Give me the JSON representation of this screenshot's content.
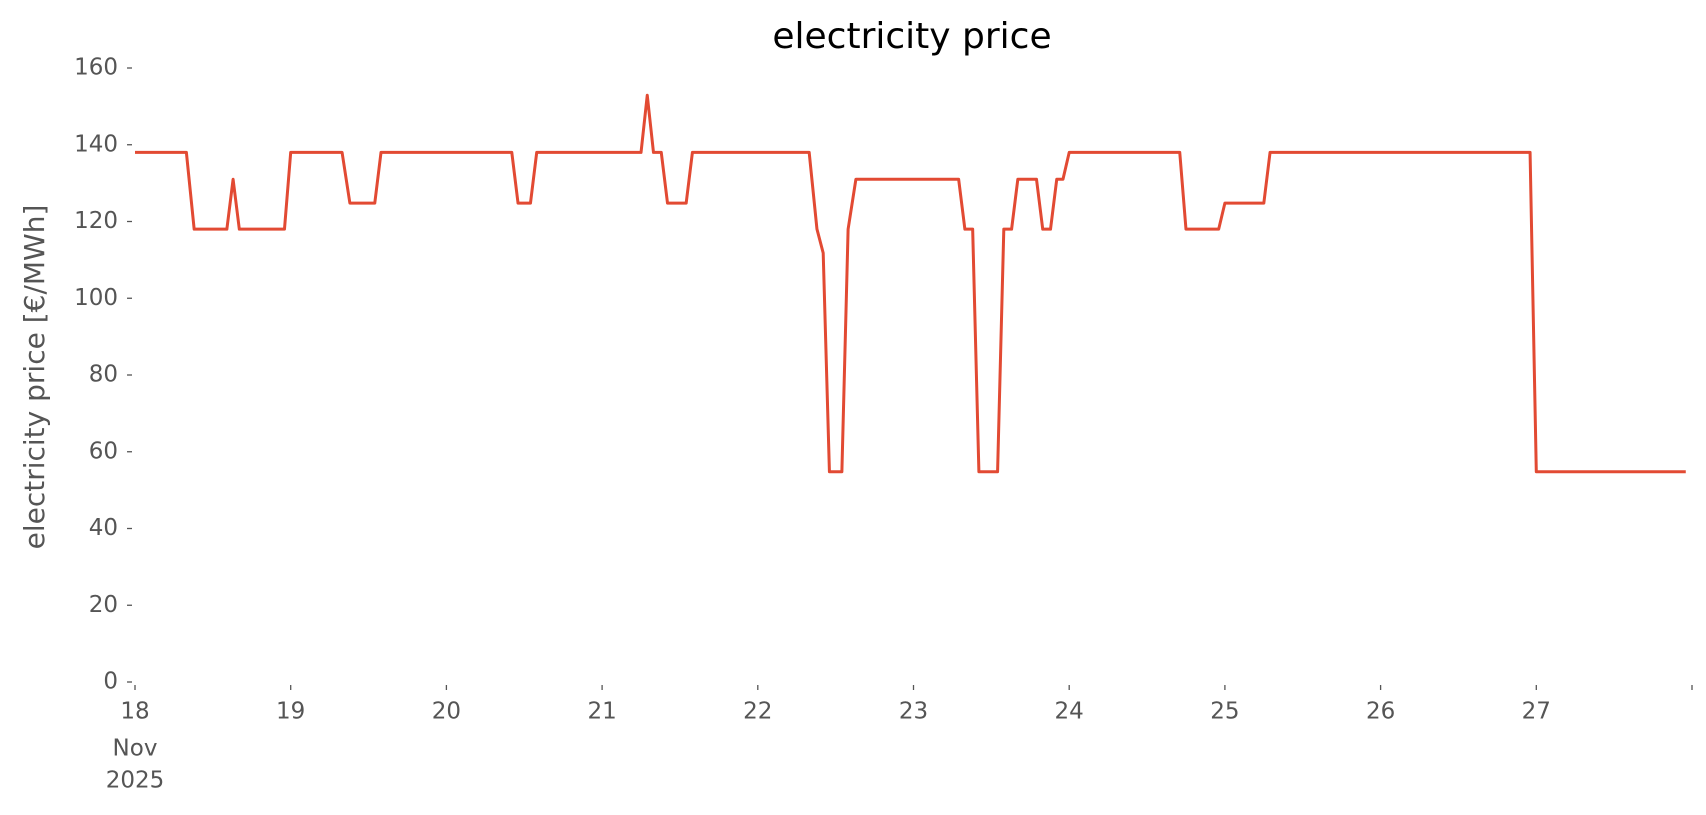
{
  "chart_data": {
    "type": "line",
    "title": "electricity price",
    "ylabel": "electricity price [€/MWh]",
    "xlim": [
      18,
      28
    ],
    "xticks": [
      18,
      19,
      20,
      21,
      22,
      23,
      24,
      25,
      26,
      27
    ],
    "xtick_sublabels": [
      "Nov",
      "2025"
    ],
    "ylim": [
      0,
      160
    ],
    "yticks": [
      0,
      20,
      40,
      60,
      80,
      100,
      120,
      140,
      160
    ],
    "grid": false,
    "series": [
      {
        "name": "electricity price",
        "color": "#e24a33",
        "x": [
          18.0,
          18.33,
          18.38,
          18.59,
          18.63,
          18.67,
          18.96,
          19.0,
          19.33,
          19.38,
          19.54,
          19.58,
          20.42,
          20.46,
          20.54,
          20.58,
          21.25,
          21.29,
          21.33,
          21.38,
          21.42,
          21.54,
          21.58,
          22.33,
          22.38,
          22.42,
          22.46,
          22.54,
          22.58,
          22.63,
          23.29,
          23.33,
          23.38,
          23.42,
          23.54,
          23.58,
          23.63,
          23.67,
          23.79,
          23.83,
          23.88,
          23.92,
          23.96,
          24.0,
          24.71,
          24.75,
          24.96,
          25.0,
          25.25,
          25.29,
          26.96,
          27.0,
          27.96
        ],
        "values": [
          138,
          138,
          118,
          118,
          131,
          118,
          118,
          138,
          138,
          124.8,
          124.8,
          138,
          138,
          124.8,
          124.8,
          138,
          138,
          152.9,
          138,
          138,
          124.8,
          124.8,
          138,
          138,
          118,
          111.8,
          54.8,
          54.8,
          118,
          131,
          131,
          118,
          118,
          54.8,
          54.8,
          118,
          118,
          131,
          131,
          118,
          118,
          131,
          131,
          138,
          138,
          118,
          118,
          124.8,
          124.8,
          138,
          138,
          54.8,
          54.8
        ]
      }
    ]
  }
}
